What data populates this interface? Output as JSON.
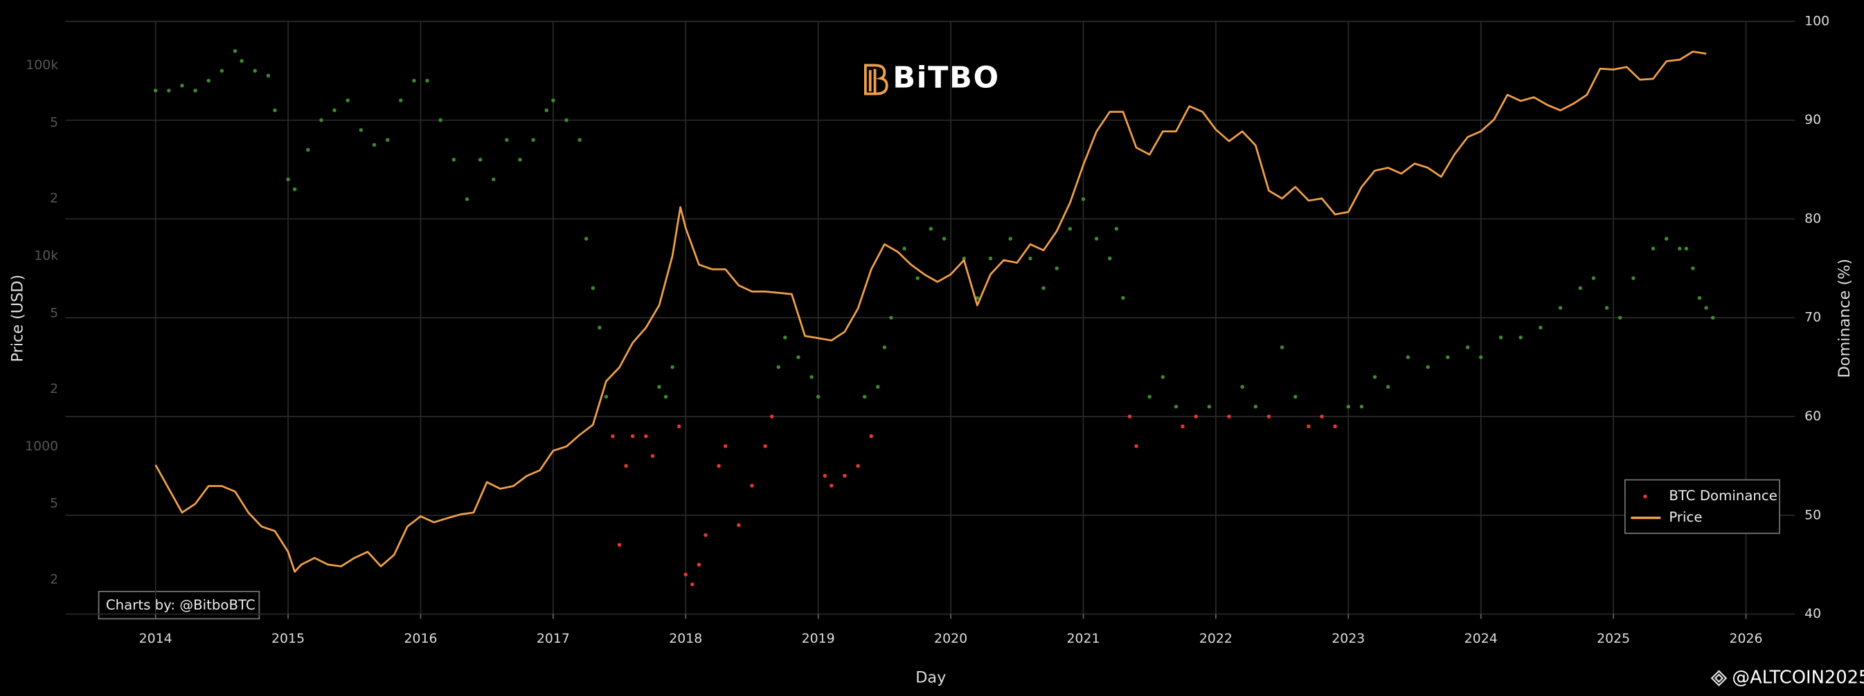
{
  "chart_data": {
    "type": "line_scatter",
    "logo": "BiTBO",
    "credit": "Charts by: @BitboBTC",
    "watermark": "@ALTCOIN2025",
    "xlabel": "Day",
    "ylabel": "Price (USD)",
    "y2label": "Dominance (%)",
    "xlim": [
      2013.32,
      2026.37
    ],
    "xticks": [
      2014,
      2015,
      2016,
      2017,
      2018,
      2019,
      2020,
      2021,
      2022,
      2023,
      2024,
      2025,
      2026
    ],
    "ylim": [
      132,
      170000
    ],
    "ylog": true,
    "yticks": [
      {
        "value": 100000,
        "label": "100k"
      },
      {
        "value": 50000,
        "label": "5"
      },
      {
        "value": 20000,
        "label": "2"
      },
      {
        "value": 10000,
        "label": "10k"
      },
      {
        "value": 5000,
        "label": "5"
      },
      {
        "value": 2000,
        "label": "2"
      },
      1000,
      {
        "value": 500,
        "label": "5"
      },
      {
        "value": 200,
        "label": "2"
      }
    ],
    "y2lim": [
      40,
      100
    ],
    "y2ticks": [
      40,
      50,
      60,
      70,
      80,
      90,
      100
    ],
    "grid": true,
    "legend": "lower right",
    "series": [
      {
        "name": "BTC Dominance",
        "kind": "scatter",
        "axis": "y2",
        "color": "#e33b2e",
        "x": [
          2014.0,
          2014.1,
          2014.2,
          2014.3,
          2014.4,
          2014.5,
          2014.6,
          2014.65,
          2014.75,
          2014.85,
          2014.9,
          2015.0,
          2015.05,
          2015.15,
          2015.25,
          2015.35,
          2015.45,
          2015.55,
          2015.65,
          2015.75,
          2015.85,
          2015.95,
          2016.05,
          2016.15,
          2016.25,
          2016.35,
          2016.45,
          2016.55,
          2016.65,
          2016.75,
          2016.85,
          2016.95,
          2017.0,
          2017.1,
          2017.2,
          2017.25,
          2017.3,
          2017.35,
          2017.4,
          2017.45,
          2017.5,
          2017.55,
          2017.6,
          2017.7,
          2017.75,
          2017.8,
          2017.85,
          2017.9,
          2017.95,
          2018.0,
          2018.05,
          2018.1,
          2018.15,
          2018.25,
          2018.3,
          2018.4,
          2018.5,
          2018.6,
          2018.65,
          2018.7,
          2018.75,
          2018.85,
          2018.95,
          2019.0,
          2019.05,
          2019.1,
          2019.2,
          2019.3,
          2019.35,
          2019.4,
          2019.45,
          2019.5,
          2019.55,
          2019.65,
          2019.75,
          2019.85,
          2019.95,
          2020.1,
          2020.2,
          2020.3,
          2020.45,
          2020.6,
          2020.7,
          2020.8,
          2020.9,
          2021.0,
          2021.1,
          2021.2,
          2021.25,
          2021.3,
          2021.35,
          2021.4,
          2021.5,
          2021.6,
          2021.7,
          2021.75,
          2021.85,
          2021.95,
          2022.1,
          2022.2,
          2022.3,
          2022.4,
          2022.5,
          2022.6,
          2022.7,
          2022.8,
          2022.9,
          2023.0,
          2023.1,
          2023.2,
          2023.3,
          2023.45,
          2023.6,
          2023.75,
          2023.9,
          2024.0,
          2024.15,
          2024.3,
          2024.45,
          2024.6,
          2024.75,
          2024.85,
          2024.95,
          2025.05,
          2025.15,
          2025.3,
          2025.4,
          2025.5,
          2025.55,
          2025.6,
          2025.65,
          2025.7,
          2025.75
        ],
        "values": [
          93,
          93,
          93.5,
          93,
          94,
          95,
          97,
          96,
          95,
          94.5,
          91,
          84,
          83,
          87,
          90,
          91,
          92,
          89,
          87.5,
          88,
          92,
          94,
          94,
          90,
          86,
          82,
          86,
          84,
          88,
          86,
          88,
          91,
          92,
          90,
          88,
          78,
          73,
          69,
          62,
          58,
          47,
          55,
          58,
          58,
          56,
          63,
          62,
          65,
          59,
          44,
          43,
          45,
          48,
          55,
          57,
          49,
          53,
          57,
          60,
          65,
          68,
          66,
          64,
          62,
          54,
          53,
          54,
          55,
          62,
          58,
          63,
          67,
          70,
          77,
          74,
          79,
          78,
          76,
          72,
          76,
          78,
          76,
          73,
          75,
          79,
          82,
          78,
          76,
          79,
          72,
          60,
          57,
          62,
          64,
          61,
          59,
          60,
          61,
          60,
          63,
          61,
          60,
          67,
          62,
          59,
          60,
          59,
          61,
          61,
          64,
          63,
          66,
          65,
          66,
          67,
          66,
          68,
          68,
          69,
          71,
          73,
          74,
          71,
          70,
          74,
          77,
          78,
          77,
          77,
          75,
          72,
          71,
          70
        ],
        "colors": [
          "#3d8b2e",
          "#3d8b2e",
          "#3d8b2e",
          "#3d8b2e",
          "#3d8b2e",
          "#3d8b2e",
          "#3d8b2e",
          "#3d8b2e",
          "#3d8b2e",
          "#3d8b2e",
          "#3d8b2e",
          "#3d8b2e",
          "#3d8b2e",
          "#3d8b2e",
          "#3d8b2e",
          "#3d8b2e",
          "#3d8b2e",
          "#3d8b2e",
          "#3d8b2e",
          "#3d8b2e",
          "#3d8b2e",
          "#3d8b2e",
          "#3d8b2e",
          "#3d8b2e",
          "#3d8b2e",
          "#3d8b2e",
          "#3d8b2e",
          "#3d8b2e",
          "#3d8b2e",
          "#3d8b2e",
          "#3d8b2e",
          "#3d8b2e",
          "#3d8b2e",
          "#3d8b2e",
          "#3d8b2e",
          "#3d8b2e",
          "#3d8b2e",
          "#3d8b2e",
          "#3d8b2e",
          "#e33b2e",
          "#e33b2e",
          "#e33b2e",
          "#e33b2e",
          "#e33b2e",
          "#e33b2e",
          "#3d8b2e",
          "#3d8b2e",
          "#3d8b2e",
          "#e33b2e",
          "#e33b2e",
          "#e33b2e",
          "#e33b2e",
          "#e33b2e",
          "#e33b2e",
          "#e33b2e",
          "#e33b2e",
          "#e33b2e",
          "#e33b2e",
          "#e33b2e",
          "#3d8b2e",
          "#3d8b2e",
          "#3d8b2e",
          "#3d8b2e",
          "#3d8b2e",
          "#e33b2e",
          "#e33b2e",
          "#e33b2e",
          "#e33b2e",
          "#3d8b2e",
          "#e33b2e",
          "#3d8b2e",
          "#3d8b2e",
          "#3d8b2e",
          "#3d8b2e",
          "#3d8b2e",
          "#3d8b2e",
          "#3d8b2e",
          "#3d8b2e",
          "#3d8b2e",
          "#3d8b2e",
          "#3d8b2e",
          "#3d8b2e",
          "#3d8b2e",
          "#3d8b2e",
          "#3d8b2e",
          "#3d8b2e",
          "#3d8b2e",
          "#3d8b2e",
          "#3d8b2e",
          "#3d8b2e",
          "#e33b2e",
          "#e33b2e",
          "#3d8b2e",
          "#3d8b2e",
          "#3d8b2e",
          "#e33b2e",
          "#e33b2e",
          "#3d8b2e",
          "#e33b2e",
          "#3d8b2e",
          "#3d8b2e",
          "#e33b2e",
          "#3d8b2e",
          "#3d8b2e",
          "#e33b2e",
          "#e33b2e",
          "#e33b2e",
          "#3d8b2e",
          "#3d8b2e",
          "#3d8b2e",
          "#3d8b2e",
          "#3d8b2e",
          "#3d8b2e",
          "#3d8b2e",
          "#3d8b2e",
          "#3d8b2e",
          "#3d8b2e",
          "#3d8b2e",
          "#3d8b2e",
          "#3d8b2e",
          "#3d8b2e",
          "#3d8b2e",
          "#3d8b2e",
          "#3d8b2e",
          "#3d8b2e",
          "#3d8b2e",
          "#3d8b2e",
          "#3d8b2e",
          "#3d8b2e",
          "#3d8b2e",
          "#3d8b2e",
          "#3d8b2e",
          "#3d8b2e"
        ]
      },
      {
        "name": "Price",
        "kind": "line",
        "color": "#f0a04b",
        "x": [
          2014.0,
          2014.1,
          2014.2,
          2014.3,
          2014.4,
          2014.5,
          2014.6,
          2014.7,
          2014.8,
          2014.9,
          2015.0,
          2015.05,
          2015.1,
          2015.2,
          2015.3,
          2015.4,
          2015.5,
          2015.6,
          2015.7,
          2015.8,
          2015.9,
          2016.0,
          2016.1,
          2016.2,
          2016.3,
          2016.4,
          2016.5,
          2016.6,
          2016.7,
          2016.8,
          2016.9,
          2017.0,
          2017.1,
          2017.2,
          2017.3,
          2017.4,
          2017.5,
          2017.6,
          2017.7,
          2017.8,
          2017.9,
          2017.96,
          2018.0,
          2018.1,
          2018.2,
          2018.3,
          2018.4,
          2018.5,
          2018.6,
          2018.7,
          2018.8,
          2018.9,
          2019.0,
          2019.1,
          2019.2,
          2019.3,
          2019.4,
          2019.5,
          2019.6,
          2019.7,
          2019.8,
          2019.9,
          2020.0,
          2020.1,
          2020.2,
          2020.3,
          2020.4,
          2020.5,
          2020.6,
          2020.7,
          2020.8,
          2020.9,
          2021.0,
          2021.1,
          2021.2,
          2021.3,
          2021.4,
          2021.5,
          2021.6,
          2021.7,
          2021.8,
          2021.9,
          2022.0,
          2022.1,
          2022.2,
          2022.3,
          2022.4,
          2022.5,
          2022.6,
          2022.7,
          2022.8,
          2022.9,
          2023.0,
          2023.1,
          2023.2,
          2023.3,
          2023.4,
          2023.5,
          2023.6,
          2023.7,
          2023.8,
          2023.9,
          2024.0,
          2024.1,
          2024.2,
          2024.3,
          2024.4,
          2024.5,
          2024.6,
          2024.7,
          2024.8,
          2024.9,
          2025.0,
          2025.1,
          2025.2,
          2025.3,
          2025.4,
          2025.5,
          2025.6,
          2025.7
        ],
        "values": [
          800,
          600,
          450,
          500,
          620,
          620,
          580,
          450,
          380,
          360,
          280,
          220,
          240,
          260,
          240,
          235,
          260,
          280,
          235,
          270,
          380,
          430,
          400,
          420,
          440,
          450,
          650,
          600,
          620,
          700,
          750,
          950,
          1000,
          1150,
          1300,
          2200,
          2600,
          3500,
          4200,
          5500,
          10000,
          18000,
          14000,
          9000,
          8500,
          8500,
          7000,
          6500,
          6500,
          6400,
          6300,
          3800,
          3700,
          3600,
          4000,
          5300,
          8500,
          11500,
          10500,
          9000,
          8000,
          7300,
          8000,
          9500,
          5500,
          8000,
          9500,
          9200,
          11500,
          10700,
          13500,
          19000,
          30000,
          45000,
          57000,
          57000,
          37000,
          34000,
          45000,
          45000,
          61000,
          57000,
          46000,
          40000,
          45000,
          38000,
          22000,
          20000,
          23000,
          19500,
          20000,
          16500,
          17000,
          23000,
          28000,
          29000,
          27000,
          30500,
          29000,
          26000,
          34000,
          42000,
          45000,
          52000,
          70000,
          65000,
          68000,
          62000,
          58000,
          63000,
          70000,
          96000,
          95000,
          98000,
          84000,
          85000,
          105000,
          107000,
          118000,
          115000
        ]
      }
    ]
  }
}
